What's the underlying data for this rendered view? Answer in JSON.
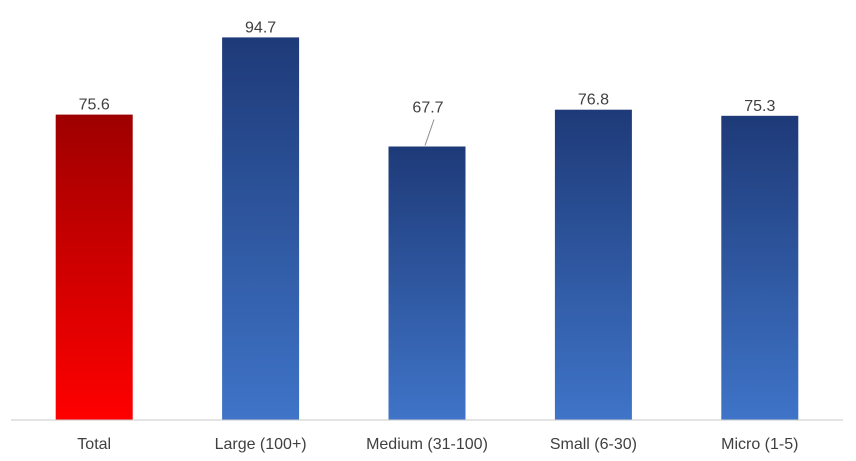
{
  "chart_data": {
    "type": "bar",
    "categories": [
      "Total",
      "Large (100+)",
      "Medium (31-100)",
      "Small (6-30)",
      "Micro (1-5)"
    ],
    "values": [
      75.6,
      94.7,
      67.7,
      76.8,
      75.3
    ],
    "data_labels": [
      "75.6",
      "94.7",
      "67.7",
      "76.8",
      "75.3"
    ],
    "title": "",
    "xlabel": "",
    "ylabel": "",
    "ylim": [
      0,
      100
    ],
    "grid": false,
    "legend": "none",
    "colors": {
      "highlight_top": "#9e0000",
      "highlight_bottom": "#ff0000",
      "bar_top": "#1e3a78",
      "bar_bottom": "#3f74c8",
      "axis": "#c8c8c8",
      "text": "#404040",
      "leader_line": "#8c8c8c"
    },
    "highlight_index": 0,
    "leader_line_index": 2
  }
}
